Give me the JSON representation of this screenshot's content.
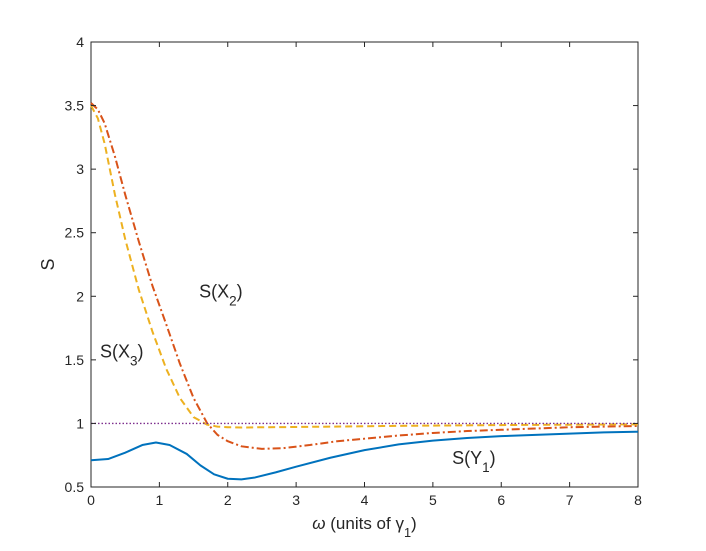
{
  "chart_data": {
    "type": "line",
    "title": "",
    "xlabel": "ω (units of γ1)",
    "ylabel": "S",
    "xlim": [
      0,
      8
    ],
    "ylim": [
      0.5,
      4
    ],
    "xticks": [
      0,
      1,
      2,
      3,
      4,
      5,
      6,
      7,
      8
    ],
    "xtick_labels": [
      "0",
      "1",
      "2",
      "3",
      "4",
      "5",
      "6",
      "7",
      "8"
    ],
    "yticks": [
      0.5,
      1,
      1.5,
      2,
      2.5,
      3,
      3.5,
      4
    ],
    "ytick_labels": [
      "0.5",
      "1",
      "1.5",
      "2",
      "2.5",
      "3",
      "3.5",
      "4"
    ],
    "grid": false,
    "legend": "none",
    "series": [
      {
        "name": "S(Y1)",
        "color": "#0072BD",
        "style": "solid",
        "points": [
          [
            0,
            0.71
          ],
          [
            0.25,
            0.72
          ],
          [
            0.5,
            0.77
          ],
          [
            0.75,
            0.83
          ],
          [
            0.95,
            0.85
          ],
          [
            1.15,
            0.83
          ],
          [
            1.4,
            0.76
          ],
          [
            1.6,
            0.67
          ],
          [
            1.8,
            0.6
          ],
          [
            2.0,
            0.565
          ],
          [
            2.2,
            0.56
          ],
          [
            2.4,
            0.575
          ],
          [
            2.7,
            0.615
          ],
          [
            3.0,
            0.66
          ],
          [
            3.5,
            0.73
          ],
          [
            4.0,
            0.79
          ],
          [
            4.5,
            0.835
          ],
          [
            5.0,
            0.865
          ],
          [
            5.5,
            0.885
          ],
          [
            6.0,
            0.9
          ],
          [
            6.5,
            0.91
          ],
          [
            7.0,
            0.92
          ],
          [
            7.5,
            0.93
          ],
          [
            8.0,
            0.935
          ]
        ]
      },
      {
        "name": "S(X2)",
        "color": "#D95319",
        "style": "dashdot",
        "points": [
          [
            0,
            3.52
          ],
          [
            0.1,
            3.47
          ],
          [
            0.2,
            3.36
          ],
          [
            0.35,
            3.1
          ],
          [
            0.5,
            2.8
          ],
          [
            0.7,
            2.43
          ],
          [
            0.9,
            2.08
          ],
          [
            1.1,
            1.78
          ],
          [
            1.3,
            1.47
          ],
          [
            1.5,
            1.2
          ],
          [
            1.7,
            1.0
          ],
          [
            1.85,
            0.91
          ],
          [
            2.0,
            0.86
          ],
          [
            2.2,
            0.82
          ],
          [
            2.5,
            0.8
          ],
          [
            2.8,
            0.805
          ],
          [
            3.2,
            0.83
          ],
          [
            3.6,
            0.86
          ],
          [
            4.0,
            0.88
          ],
          [
            4.5,
            0.905
          ],
          [
            5.0,
            0.925
          ],
          [
            5.5,
            0.94
          ],
          [
            6.0,
            0.95
          ],
          [
            6.5,
            0.96
          ],
          [
            7.0,
            0.97
          ],
          [
            7.5,
            0.975
          ],
          [
            8.0,
            0.98
          ]
        ]
      },
      {
        "name": "S(X3)",
        "color": "#EDB120",
        "style": "dashed",
        "points": [
          [
            0,
            3.5
          ],
          [
            0.1,
            3.4
          ],
          [
            0.2,
            3.2
          ],
          [
            0.35,
            2.8
          ],
          [
            0.5,
            2.45
          ],
          [
            0.7,
            2.05
          ],
          [
            0.9,
            1.72
          ],
          [
            1.1,
            1.43
          ],
          [
            1.3,
            1.2
          ],
          [
            1.5,
            1.05
          ],
          [
            1.7,
            0.99
          ],
          [
            1.85,
            0.975
          ],
          [
            2.0,
            0.97
          ],
          [
            2.2,
            0.968
          ],
          [
            2.5,
            0.97
          ],
          [
            3.0,
            0.972
          ],
          [
            3.5,
            0.975
          ],
          [
            4.0,
            0.978
          ],
          [
            4.5,
            0.981
          ],
          [
            5.0,
            0.983
          ],
          [
            5.5,
            0.985
          ],
          [
            6.0,
            0.987
          ],
          [
            6.5,
            0.989
          ],
          [
            7.0,
            0.99
          ],
          [
            7.5,
            0.992
          ],
          [
            8.0,
            0.993
          ]
        ]
      },
      {
        "name": "",
        "color": "#7E2F8E",
        "style": "dotted",
        "points": [
          [
            0,
            1
          ],
          [
            8,
            1
          ]
        ]
      }
    ],
    "annotations": [
      {
        "name": "S(X2)",
        "x": 1.9,
        "y": 1.99
      },
      {
        "name": "S(X3)",
        "x": 0.45,
        "y": 1.52
      },
      {
        "name": "S(Y1)",
        "x": 5.6,
        "y": 0.68
      }
    ]
  }
}
